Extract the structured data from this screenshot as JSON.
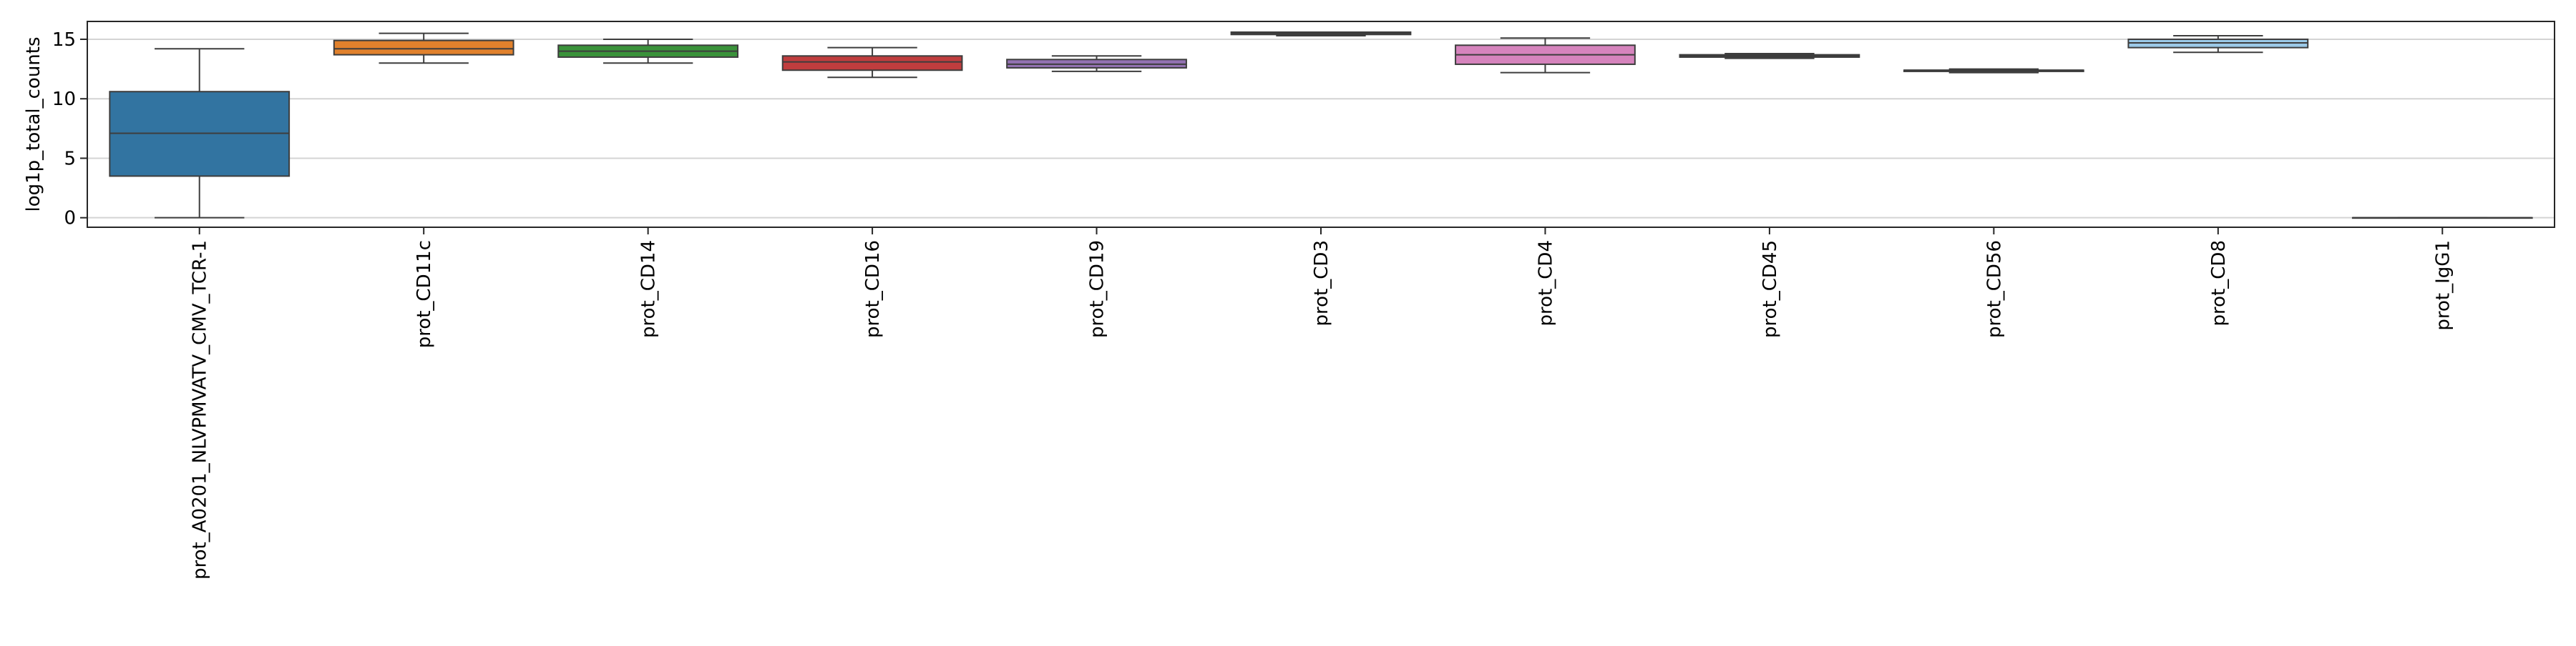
{
  "chart_data": {
    "type": "box",
    "title": "",
    "xlabel": "",
    "ylabel": "log1p_total_counts",
    "ylim": [
      -0.8,
      16.5
    ],
    "yticks": [
      0,
      5,
      10,
      15
    ],
    "grid": "horizontal",
    "categories": [
      "prot_A0201_NLVPMVATV_CMV_TCR-1",
      "prot_CD11c",
      "prot_CD14",
      "prot_CD16",
      "prot_CD19",
      "prot_CD3",
      "prot_CD4",
      "prot_CD45",
      "prot_CD56",
      "prot_CD8",
      "prot_IgG1"
    ],
    "colors": [
      "#3274a1",
      "#e1812c",
      "#3a923a",
      "#c03d3e",
      "#9372b2",
      "#845b53",
      "#d684bd",
      "#7f7f7f",
      "#a9aa35",
      "#9ccae8",
      "#ffffff"
    ],
    "boxes": [
      {
        "whislo": 0.0,
        "q1": 3.5,
        "med": 7.1,
        "q3": 10.6,
        "whishi": 14.2
      },
      {
        "whislo": 13.0,
        "q1": 13.7,
        "med": 14.2,
        "q3": 14.9,
        "whishi": 15.5
      },
      {
        "whislo": 13.0,
        "q1": 13.5,
        "med": 14.0,
        "q3": 14.5,
        "whishi": 15.0
      },
      {
        "whislo": 11.8,
        "q1": 12.4,
        "med": 13.1,
        "q3": 13.6,
        "whishi": 14.3
      },
      {
        "whislo": 12.3,
        "q1": 12.6,
        "med": 12.9,
        "q3": 13.3,
        "whishi": 13.6
      },
      {
        "whislo": 15.3,
        "q1": 15.4,
        "med": 15.5,
        "q3": 15.6,
        "whishi": 15.6
      },
      {
        "whislo": 12.2,
        "q1": 12.9,
        "med": 13.7,
        "q3": 14.5,
        "whishi": 15.1
      },
      {
        "whislo": 13.4,
        "q1": 13.5,
        "med": 13.6,
        "q3": 13.7,
        "whishi": 13.8
      },
      {
        "whislo": 12.2,
        "q1": 12.3,
        "med": 12.4,
        "q3": 12.4,
        "whishi": 12.5
      },
      {
        "whislo": 13.9,
        "q1": 14.3,
        "med": 14.7,
        "q3": 15.0,
        "whishi": 15.3
      },
      {
        "whislo": 0.0,
        "q1": 0.0,
        "med": 0.0,
        "q3": 0.0,
        "whishi": 0.0
      }
    ]
  }
}
